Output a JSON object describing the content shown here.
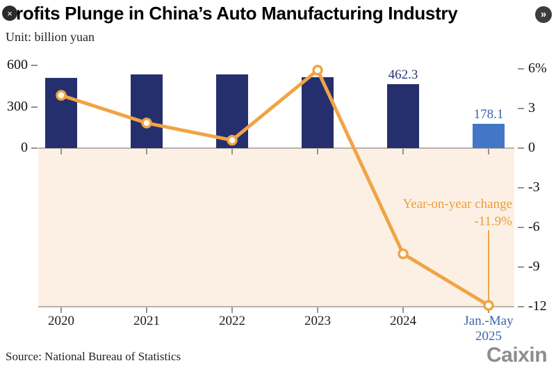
{
  "window": {
    "close_icon": "×",
    "share_icon": "»"
  },
  "header": {
    "title": "Profits Plunge in China’s Auto Manufacturing Industry",
    "unit": "Unit: billion yuan"
  },
  "footer": {
    "source": "Source: National Bureau of Statistics",
    "brand": "Caixin"
  },
  "colors": {
    "bar_navy": "#262f6e",
    "bar_blue": "#4377c5",
    "line_orange": "#f0a445",
    "area_peach": "#fcf0e4",
    "axis_gray": "#b8b2ab",
    "value_label_navy": "#2b3674",
    "value_label_blue": "#3d63ad"
  },
  "chart_data": {
    "type": "combo-bar-line",
    "title": "Profits Plunge in China’s Auto Manufacturing Industry",
    "unit_label": "Unit: billion yuan",
    "categories": [
      "2020",
      "2021",
      "2022",
      "2023",
      "2024",
      "Jan.-May 2025"
    ],
    "series": [
      {
        "name": "Profits (billion yuan)",
        "type": "bar",
        "axis": "left",
        "values": [
          510,
          535,
          533,
          515,
          462.3,
          178.1
        ]
      },
      {
        "name": "Year-on-year change (%)",
        "type": "line",
        "axis": "right",
        "values": [
          4.0,
          1.9,
          0.6,
          5.9,
          -8.0,
          -11.9
        ]
      }
    ],
    "points": [
      {
        "label": "2020",
        "profit": 510,
        "yoy": 4.0
      },
      {
        "label": "2021",
        "profit": 535,
        "yoy": 1.9
      },
      {
        "label": "2022",
        "profit": 533,
        "yoy": 0.6
      },
      {
        "label": "2023",
        "profit": 515,
        "yoy": 5.9
      },
      {
        "label": "2024",
        "profit": 462.3,
        "yoy": -8.0,
        "value_label": "462.3"
      },
      {
        "label": "Jan.-May 2025",
        "label_lines": [
          "Jan.-May",
          "2025"
        ],
        "profit": 178.1,
        "yoy": -11.9,
        "value_label": "178.1",
        "highlight": true
      }
    ],
    "left_axis": {
      "tick_labels": [
        "600",
        "300",
        "0"
      ],
      "tick_values": [
        600,
        300,
        0
      ],
      "range": [
        0,
        600
      ]
    },
    "right_axis": {
      "tick_labels": [
        "6%",
        "3",
        "0",
        "-3",
        "-6",
        "-9",
        "-12"
      ],
      "tick_values": [
        6,
        3,
        0,
        -3,
        -6,
        -9,
        -12
      ],
      "range": [
        -12,
        6
      ]
    },
    "annotation": {
      "line1": "Year-on-year change",
      "line2": "-11.9%"
    },
    "grid": "off",
    "legend": "none",
    "negative_region_shaded": true
  }
}
